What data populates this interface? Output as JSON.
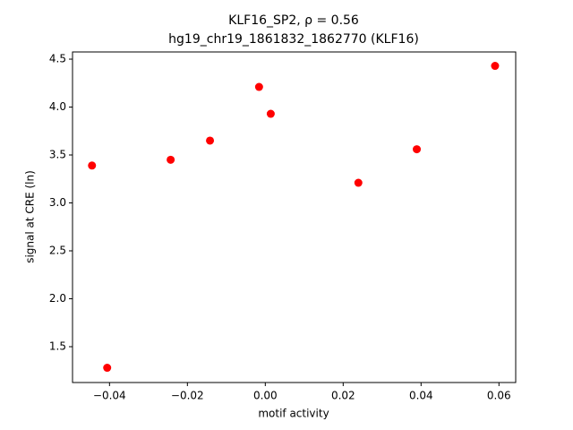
{
  "chart_data": {
    "type": "scatter",
    "title": "KLF16_SP2, ρ = 0.56",
    "subtitle": "hg19_chr19_1861832_1862770 (KLF16)",
    "x_label": "motif activity",
    "y_label": "signal at CRE (ln)",
    "color": "#ff0000",
    "x": [
      -0.0445,
      -0.0406,
      -0.0243,
      -0.0142,
      -0.0016,
      0.0014,
      0.0239,
      0.0389,
      0.059
    ],
    "values": [
      3.39,
      1.28,
      3.45,
      3.65,
      4.21,
      3.93,
      3.21,
      3.56,
      4.43
    ],
    "xlim": [
      -0.0495,
      0.0643
    ],
    "ylim": [
      1.126,
      4.575
    ],
    "xticks": [
      {
        "value": -0.04,
        "label": "−0.04"
      },
      {
        "value": -0.02,
        "label": "−0.02"
      },
      {
        "value": 0,
        "label": "0.00"
      },
      {
        "value": 0.02,
        "label": "0.02"
      },
      {
        "value": 0.04,
        "label": "0.04"
      },
      {
        "value": 0.06,
        "label": "0.06"
      }
    ],
    "yticks": [
      {
        "value": 1.5,
        "label": "1.5"
      },
      {
        "value": 2,
        "label": "2.0"
      },
      {
        "value": 2.5,
        "label": "2.5"
      },
      {
        "value": 3,
        "label": "3.0"
      },
      {
        "value": 3.5,
        "label": "3.5"
      },
      {
        "value": 4,
        "label": "4.0"
      },
      {
        "value": 4.5,
        "label": "4.5"
      }
    ]
  }
}
